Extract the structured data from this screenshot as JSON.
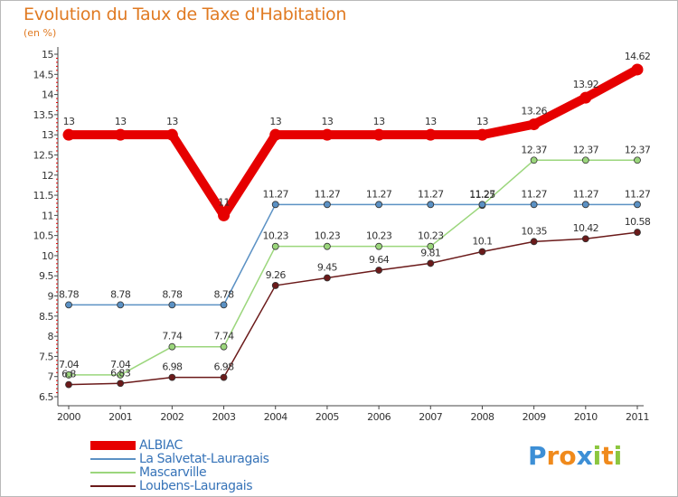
{
  "title": "Evolution du Taux de Taxe d'Habitation",
  "unit_label": "(en %)",
  "chart_data": {
    "type": "line",
    "title": "Evolution du Taux de Taxe d'Habitation",
    "ylabel": "(en %)",
    "xlabel": "",
    "x": [
      "2000",
      "2001",
      "2002",
      "2003",
      "2004",
      "2005",
      "2006",
      "2007",
      "2008",
      "2009",
      "2010",
      "2011"
    ],
    "ylim": [
      6.5,
      15
    ],
    "yticks": [
      "6.5",
      "7",
      "7.5",
      "8",
      "8.5",
      "9",
      "9.5",
      "10",
      "10.5",
      "11",
      "11.5",
      "12",
      "12.5",
      "13",
      "13.5",
      "14",
      "14.5",
      "15"
    ],
    "grid": false,
    "legend": "bottom-left",
    "series": [
      {
        "name": "ALBIAC",
        "color": "#e60000",
        "values": [
          13,
          13,
          13,
          11,
          13,
          13,
          13,
          13,
          13,
          13.26,
          13.92,
          14.62
        ],
        "labels": [
          "13",
          "13",
          "13",
          "11",
          "13",
          "13",
          "13",
          "13",
          "13",
          "13.26",
          "13.92",
          "14.62"
        ]
      },
      {
        "name": "La Salvetat-Lauragais",
        "color": "#5b91c4",
        "values": [
          8.78,
          8.78,
          8.78,
          8.78,
          11.27,
          11.27,
          11.27,
          11.27,
          11.27,
          11.27,
          11.27,
          11.27
        ],
        "labels": [
          "8.78",
          "8.78",
          "8.78",
          "8.78",
          "11.27",
          "11.27",
          "11.27",
          "11.27",
          "11.27",
          "11.27",
          "11.27",
          "11.27"
        ]
      },
      {
        "name": "Mascarville",
        "color": "#9bd67c",
        "values": [
          7.04,
          7.04,
          7.74,
          7.74,
          10.23,
          10.23,
          10.23,
          10.23,
          11.25,
          12.37,
          12.37,
          12.37
        ],
        "labels": [
          "7.04",
          "7.04",
          "7.74",
          "7.74",
          "10.23",
          "10.23",
          "10.23",
          "10.23",
          "11.25",
          "12.37",
          "12.37",
          "12.37"
        ]
      },
      {
        "name": "Loubens-Lauragais",
        "color": "#6b1a1a",
        "values": [
          6.8,
          6.83,
          6.98,
          6.98,
          9.26,
          9.45,
          9.64,
          9.81,
          10.1,
          10.35,
          10.42,
          10.58
        ],
        "labels": [
          "6.8",
          "6.83",
          "6.98",
          "6.98",
          "9.26",
          "9.45",
          "9.64",
          "9.81",
          "10.1",
          "10.35",
          "10.42",
          "10.58"
        ]
      }
    ]
  },
  "logo": {
    "letters": [
      "P",
      "r",
      "o",
      "x",
      "i",
      "t",
      "i"
    ],
    "colors": [
      "#3d8fd6",
      "#f08a1c",
      "#f08a1c",
      "#3d8fd6",
      "#8cc63f",
      "#f08a1c",
      "#8cc63f"
    ]
  }
}
